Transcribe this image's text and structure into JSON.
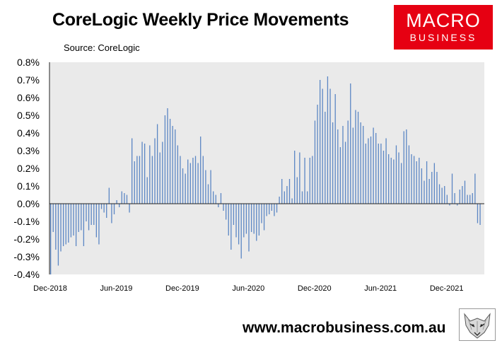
{
  "title": "CoreLogic Weekly Price Movements",
  "source": "Source: CoreLogic",
  "logo": {
    "line1": "MACRO",
    "line2": "BUSINESS"
  },
  "footer": "www.macrobusiness.com.au",
  "colors": {
    "bar": "#5b86c4",
    "plot_bg": "#eaeaea",
    "brand_red": "#e60012"
  },
  "chart_data": {
    "type": "bar",
    "title": "CoreLogic Weekly Price Movements",
    "xlabel": "",
    "ylabel": "",
    "ylim": [
      -0.4,
      0.8
    ],
    "y_ticks": [
      "0.8%",
      "0.7%",
      "0.6%",
      "0.5%",
      "0.4%",
      "0.3%",
      "0.2%",
      "0.1%",
      "0.0%",
      "-0.1%",
      "-0.2%",
      "-0.3%",
      "-0.4%"
    ],
    "x_ticks": [
      "Dec-2018",
      "Jun-2019",
      "Dec-2019",
      "Jun-2020",
      "Dec-2020",
      "Jun-2021",
      "Dec-2021"
    ],
    "grid": false,
    "legend": "none",
    "start_week": "Dec-2018",
    "values": [
      -0.4,
      -0.16,
      -0.26,
      -0.35,
      -0.27,
      -0.24,
      -0.23,
      -0.22,
      -0.19,
      -0.18,
      -0.24,
      -0.16,
      -0.15,
      -0.24,
      -0.1,
      -0.15,
      -0.12,
      -0.12,
      -0.19,
      -0.23,
      -0.03,
      -0.05,
      -0.08,
      0.09,
      -0.11,
      -0.06,
      0.02,
      -0.02,
      0.07,
      0.06,
      0.05,
      -0.05,
      0.37,
      0.24,
      0.27,
      0.27,
      0.35,
      0.34,
      0.15,
      0.33,
      0.27,
      0.37,
      0.45,
      0.29,
      0.35,
      0.5,
      0.54,
      0.48,
      0.44,
      0.42,
      0.33,
      0.27,
      0.2,
      0.17,
      0.25,
      0.23,
      0.26,
      0.27,
      0.23,
      0.38,
      0.27,
      0.19,
      0.11,
      0.19,
      0.07,
      0.05,
      -0.02,
      0.06,
      -0.04,
      -0.09,
      -0.18,
      -0.26,
      -0.12,
      -0.19,
      -0.23,
      -0.31,
      -0.19,
      -0.17,
      -0.27,
      -0.16,
      -0.17,
      -0.21,
      -0.18,
      -0.11,
      -0.15,
      -0.07,
      -0.06,
      -0.04,
      -0.07,
      -0.05,
      0.04,
      0.14,
      0.07,
      0.1,
      0.14,
      0.03,
      0.3,
      0.15,
      0.29,
      0.07,
      0.26,
      0.07,
      0.26,
      0.27,
      0.47,
      0.56,
      0.7,
      0.65,
      0.52,
      0.72,
      0.65,
      0.46,
      0.62,
      0.42,
      0.32,
      0.44,
      0.35,
      0.47,
      0.68,
      0.43,
      0.53,
      0.52,
      0.46,
      0.44,
      0.34,
      0.37,
      0.38,
      0.43,
      0.4,
      0.34,
      0.34,
      0.3,
      0.37,
      0.28,
      0.26,
      0.25,
      0.33,
      0.29,
      0.23,
      0.41,
      0.42,
      0.33,
      0.28,
      0.27,
      0.24,
      0.26,
      0.2,
      0.13,
      0.24,
      0.14,
      0.18,
      0.23,
      0.18,
      0.11,
      0.09,
      0.1,
      0.05,
      -0.01,
      0.17,
      0.06,
      -0.01,
      0.08,
      0.1,
      0.13,
      0.05,
      0.05,
      0.06,
      0.17,
      -0.11,
      -0.12
    ]
  }
}
